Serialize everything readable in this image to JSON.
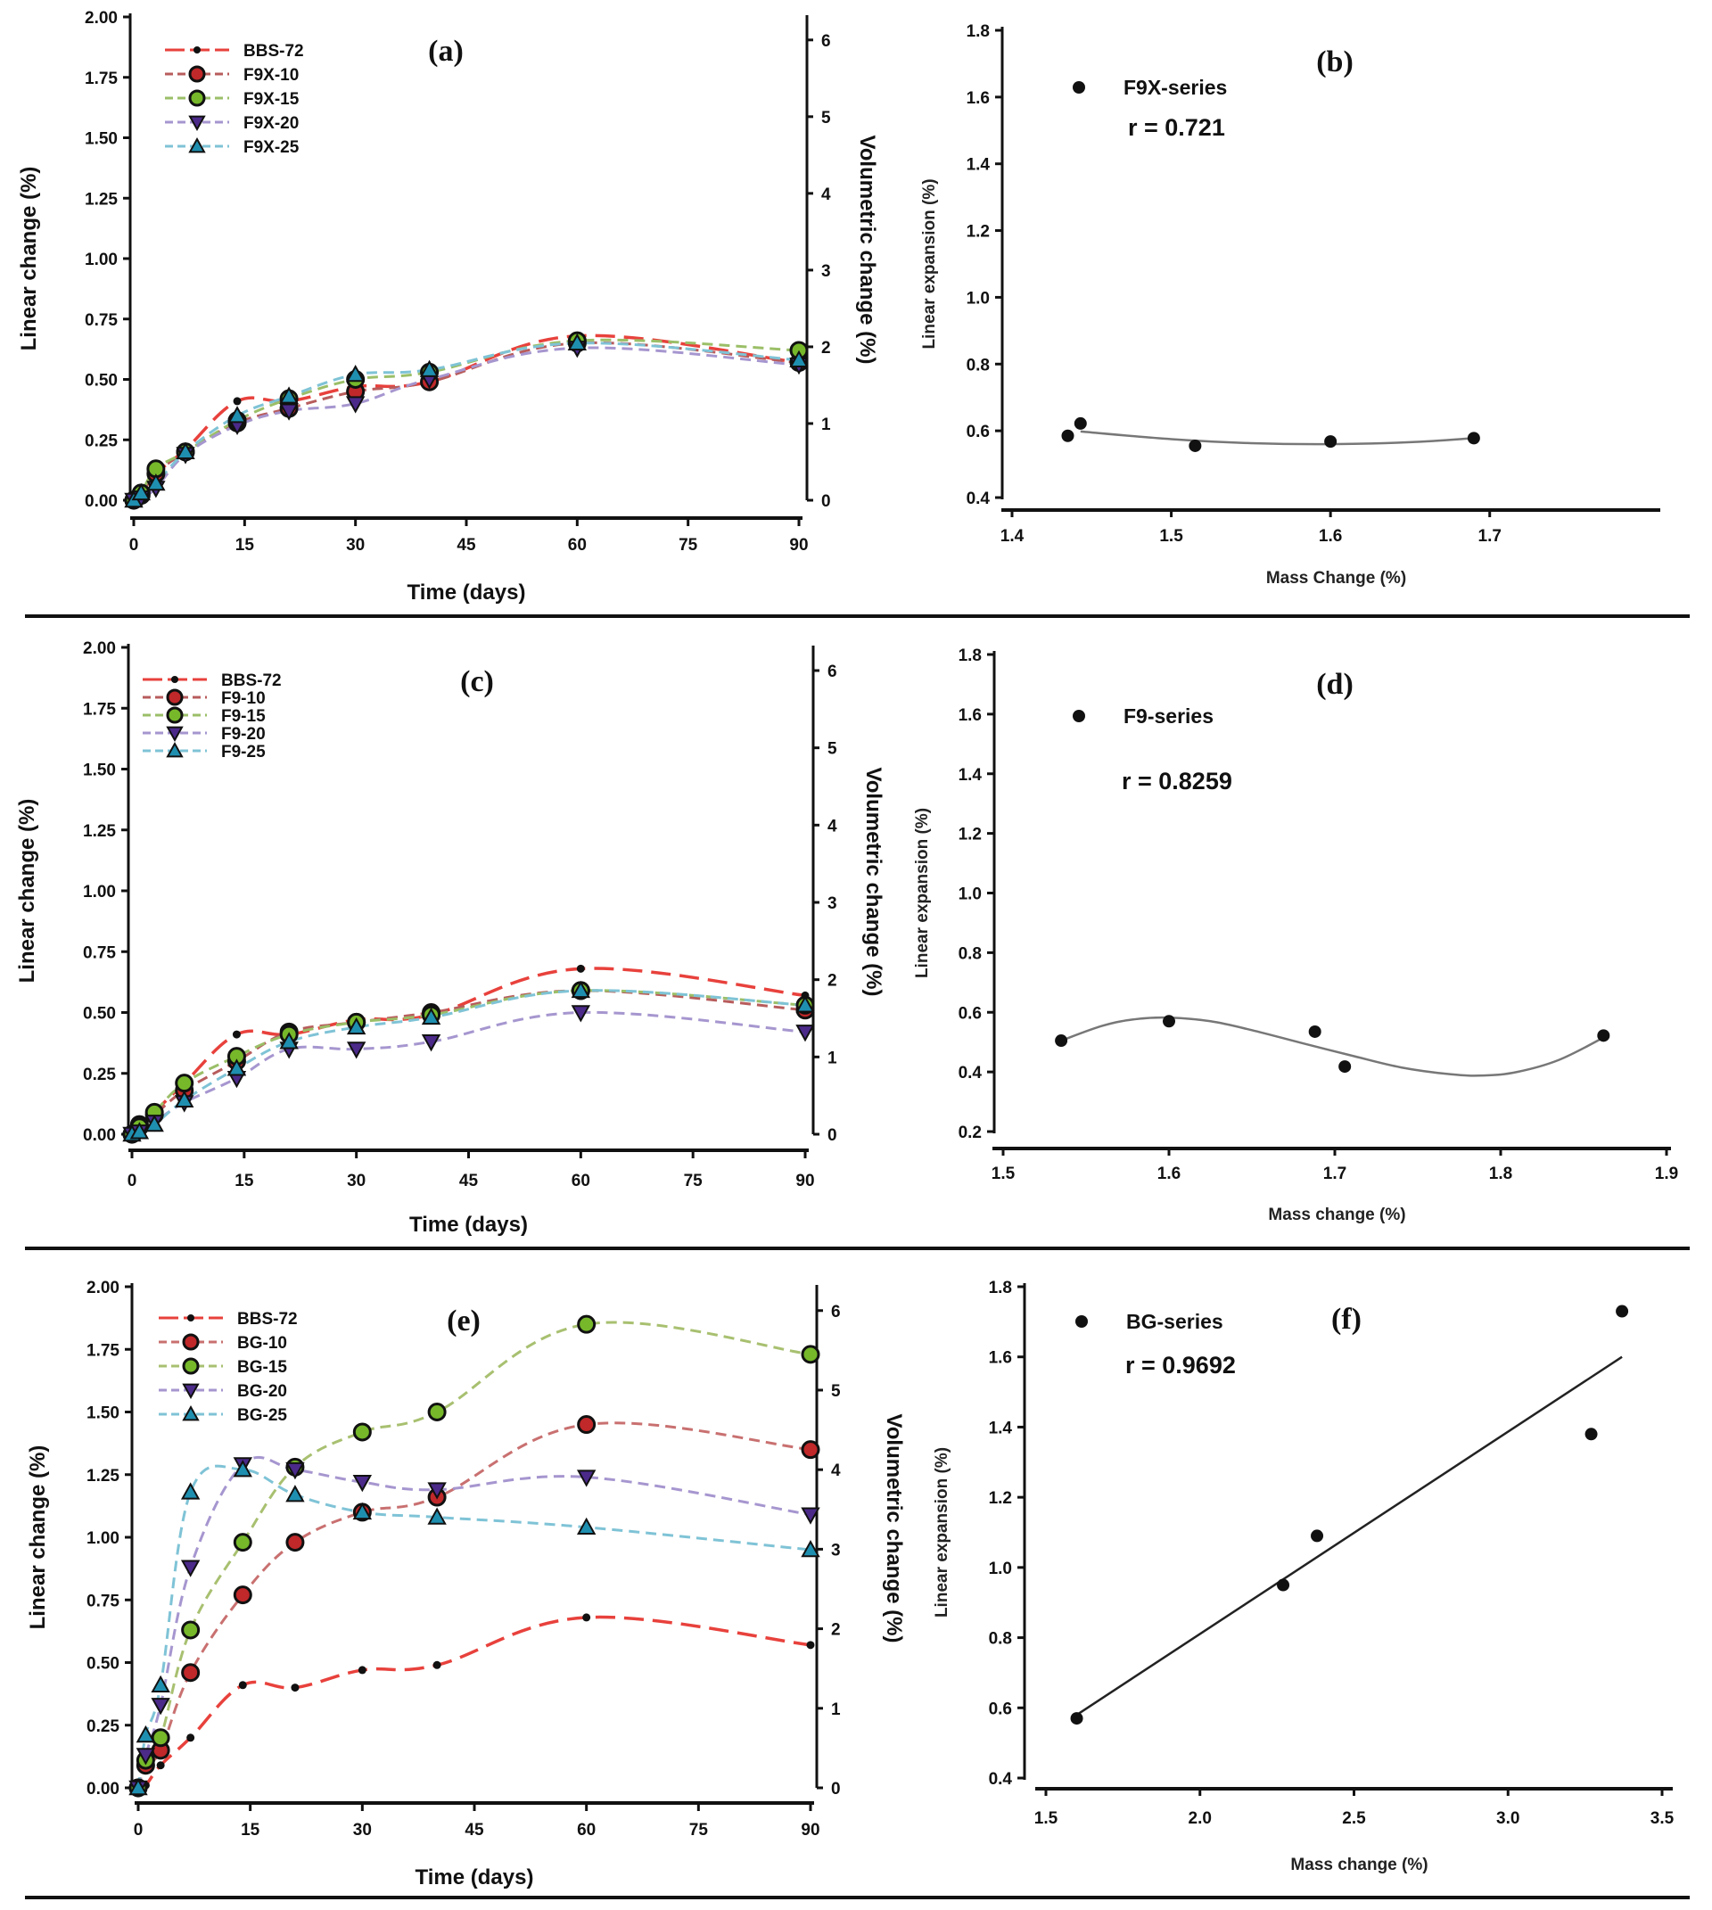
{
  "chart_data": [
    {
      "id": "a",
      "type": "line",
      "panel_label": "(a)",
      "xlabel": "Time (days)",
      "ylabel": "Linear change (%)",
      "y2label": "Volumetric change (%)",
      "xlim": [
        0,
        90
      ],
      "ylim": [
        0,
        2.0
      ],
      "y2lim": [
        0,
        6.3
      ],
      "xticks": [
        "0",
        "15",
        "30",
        "45",
        "60",
        "75",
        "90"
      ],
      "yticks": [
        "0.00",
        "0.25",
        "0.50",
        "0.75",
        "1.00",
        "1.25",
        "1.50",
        "1.75",
        "2.00"
      ],
      "y2ticks": [
        "0",
        "1",
        "2",
        "3",
        "4",
        "5",
        "6"
      ],
      "legend_position": "top-left",
      "x": [
        0,
        1,
        3,
        7,
        14,
        21,
        30,
        40,
        60,
        90
      ],
      "series": [
        {
          "name": "BBS-72",
          "color": "#e8413c",
          "marker": "dot",
          "values": [
            0,
            0.02,
            0.11,
            0.21,
            0.41,
            0.41,
            0.47,
            0.49,
            0.68,
            0.57
          ]
        },
        {
          "name": "F9X-10",
          "color": "#b85c5c",
          "marker": "circle",
          "markerFill": "#c0282a",
          "values": [
            0,
            0.02,
            0.11,
            0.2,
            0.32,
            0.38,
            0.45,
            0.49,
            0.65,
            0.57
          ]
        },
        {
          "name": "F9X-15",
          "color": "#9bbf68",
          "marker": "circle",
          "markerFill": "#76b82a",
          "values": [
            0,
            0.03,
            0.13,
            0.2,
            0.33,
            0.42,
            0.5,
            0.53,
            0.66,
            0.62
          ]
        },
        {
          "name": "F9X-20",
          "color": "#a696cf",
          "marker": "triangle-down",
          "markerFill": "#4b2a8a",
          "values": [
            0,
            0.01,
            0.05,
            0.19,
            0.31,
            0.37,
            0.4,
            0.5,
            0.63,
            0.56
          ]
        },
        {
          "name": "F9X-25",
          "color": "#7fc3d6",
          "marker": "triangle-up",
          "markerFill": "#1f8fb0",
          "values": [
            0,
            0.03,
            0.07,
            0.2,
            0.35,
            0.43,
            0.52,
            0.54,
            0.65,
            0.58
          ]
        }
      ]
    },
    {
      "id": "b",
      "type": "scatter",
      "panel_label": "(b)",
      "xlabel": "Mass Change (%)",
      "ylabel": "Linear expansion (%)",
      "xlim": [
        1.4,
        1.75
      ],
      "ylim": [
        0.4,
        1.8
      ],
      "xticks": [
        "1.4",
        "1.5",
        "1.6",
        "1.7"
      ],
      "xtick_values": [
        1.4,
        1.5,
        1.6,
        1.7
      ],
      "yticks": [
        "0.4",
        "0.6",
        "0.8",
        "1.0",
        "1.2",
        "1.4",
        "1.6",
        "1.8"
      ],
      "legend": "F9X-series",
      "annotation": "r = 0.721",
      "fit": "quadratic",
      "points": [
        [
          1.435,
          0.585
        ],
        [
          1.443,
          0.622
        ],
        [
          1.515,
          0.555
        ],
        [
          1.6,
          0.568
        ],
        [
          1.69,
          0.578
        ]
      ],
      "fit_curve": [
        [
          1.443,
          0.598
        ],
        [
          1.5,
          0.575
        ],
        [
          1.55,
          0.563
        ],
        [
          1.6,
          0.56
        ],
        [
          1.65,
          0.566
        ],
        [
          1.69,
          0.578
        ]
      ]
    },
    {
      "id": "c",
      "type": "line",
      "panel_label": "(c)",
      "xlabel": "Time (days)",
      "ylabel": "Linear change (%)",
      "y2label": "Volumetric change (%)",
      "xlim": [
        0,
        90
      ],
      "ylim": [
        0,
        2.0
      ],
      "y2lim": [
        0,
        6.3
      ],
      "xticks": [
        "0",
        "15",
        "30",
        "45",
        "60",
        "75",
        "90"
      ],
      "yticks": [
        "0.00",
        "0.25",
        "0.50",
        "0.75",
        "1.00",
        "1.25",
        "1.50",
        "1.75",
        "2.00"
      ],
      "y2ticks": [
        "0",
        "1",
        "2",
        "3",
        "4",
        "5",
        "6"
      ],
      "legend_position": "top-left",
      "x": [
        0,
        1,
        3,
        7,
        14,
        21,
        30,
        40,
        60,
        90
      ],
      "series": [
        {
          "name": "BBS-72",
          "color": "#e8413c",
          "marker": "dot",
          "values": [
            0,
            0.02,
            0.09,
            0.21,
            0.41,
            0.41,
            0.47,
            0.49,
            0.68,
            0.57
          ]
        },
        {
          "name": "F9-10",
          "color": "#b85c5c",
          "marker": "circle",
          "markerFill": "#c0282a",
          "values": [
            0,
            0.04,
            0.08,
            0.18,
            0.3,
            0.42,
            0.46,
            0.5,
            0.59,
            0.51
          ]
        },
        {
          "name": "F9-15",
          "color": "#9bbf68",
          "marker": "circle",
          "markerFill": "#76b82a",
          "values": [
            0,
            0.03,
            0.09,
            0.21,
            0.32,
            0.41,
            0.46,
            0.49,
            0.59,
            0.53
          ]
        },
        {
          "name": "F9-20",
          "color": "#a696cf",
          "marker": "triangle-down",
          "markerFill": "#4b2a8a",
          "values": [
            0,
            0.01,
            0.05,
            0.13,
            0.23,
            0.35,
            0.35,
            0.38,
            0.5,
            0.42
          ]
        },
        {
          "name": "F9-25",
          "color": "#7fc3d6",
          "marker": "triangle-up",
          "markerFill": "#1f8fb0",
          "values": [
            0,
            0.01,
            0.04,
            0.14,
            0.27,
            0.38,
            0.44,
            0.48,
            0.59,
            0.53
          ]
        }
      ]
    },
    {
      "id": "d",
      "type": "scatter",
      "panel_label": "(d)",
      "xlabel": "Mass change (%)",
      "ylabel": "Linear expansion (%)",
      "xlim": [
        1.5,
        1.9
      ],
      "ylim": [
        0.2,
        1.8
      ],
      "xticks": [
        "1.5",
        "1.6",
        "1.7",
        "1.8",
        "1.9"
      ],
      "xtick_values": [
        1.5,
        1.6,
        1.7,
        1.8,
        1.9
      ],
      "yticks": [
        "0.2",
        "0.4",
        "0.6",
        "0.8",
        "1.0",
        "1.2",
        "1.4",
        "1.6",
        "1.8"
      ],
      "legend": "F9-series",
      "annotation": "r = 0.8259",
      "fit": "cubic",
      "points": [
        [
          1.535,
          0.505
        ],
        [
          1.6,
          0.57
        ],
        [
          1.688,
          0.535
        ],
        [
          1.706,
          0.418
        ],
        [
          1.862,
          0.522
        ]
      ],
      "fit_curve": [
        [
          1.535,
          0.505
        ],
        [
          1.56,
          0.555
        ],
        [
          1.58,
          0.577
        ],
        [
          1.6,
          0.582
        ],
        [
          1.625,
          0.57
        ],
        [
          1.65,
          0.54
        ],
        [
          1.68,
          0.497
        ],
        [
          1.71,
          0.455
        ],
        [
          1.74,
          0.415
        ],
        [
          1.77,
          0.392
        ],
        [
          1.79,
          0.388
        ],
        [
          1.81,
          0.4
        ],
        [
          1.835,
          0.44
        ],
        [
          1.862,
          0.515
        ]
      ]
    },
    {
      "id": "e",
      "type": "line",
      "panel_label": "(e)",
      "xlabel": "Time (days)",
      "ylabel": "Linear change (%)",
      "y2label": "Volumetric change (%)",
      "xlim": [
        0,
        90
      ],
      "ylim": [
        0,
        2.0
      ],
      "y2lim": [
        0,
        6.3
      ],
      "xticks": [
        "0",
        "15",
        "30",
        "45",
        "60",
        "75",
        "90"
      ],
      "yticks": [
        "0.00",
        "0.25",
        "0.50",
        "0.75",
        "1.00",
        "1.25",
        "1.50",
        "1.75",
        "2.00"
      ],
      "y2ticks": [
        "0",
        "1",
        "2",
        "3",
        "4",
        "5",
        "6"
      ],
      "legend_position": "top-left",
      "x": [
        0,
        1,
        3,
        7,
        14,
        21,
        30,
        40,
        60,
        90
      ],
      "series": [
        {
          "name": "BBS-72",
          "color": "#e8413c",
          "marker": "dot",
          "values": [
            0,
            0.01,
            0.09,
            0.2,
            0.41,
            0.4,
            0.47,
            0.49,
            0.68,
            0.57
          ]
        },
        {
          "name": "BG-10",
          "color": "#c97070",
          "marker": "circle",
          "markerFill": "#c0282a",
          "values": [
            0,
            0.09,
            0.15,
            0.46,
            0.77,
            0.98,
            1.1,
            1.16,
            1.45,
            1.35
          ]
        },
        {
          "name": "BG-15",
          "color": "#a8c070",
          "marker": "circle",
          "markerFill": "#76b82a",
          "values": [
            0,
            0.11,
            0.2,
            0.63,
            0.98,
            1.28,
            1.42,
            1.5,
            1.85,
            1.73
          ]
        },
        {
          "name": "BG-20",
          "color": "#a696cf",
          "marker": "triangle-down",
          "markerFill": "#4b2a8a",
          "values": [
            0,
            0.13,
            0.33,
            0.88,
            1.29,
            1.27,
            1.22,
            1.19,
            1.24,
            1.09
          ]
        },
        {
          "name": "BG-25",
          "color": "#7fc3d6",
          "marker": "triangle-up",
          "markerFill": "#1f8fb0",
          "values": [
            0,
            0.21,
            0.41,
            1.18,
            1.27,
            1.17,
            1.1,
            1.08,
            1.04,
            0.95
          ]
        }
      ]
    },
    {
      "id": "f",
      "type": "scatter",
      "panel_label": "(f)",
      "xlabel": "Mass change (%)",
      "ylabel": "Linear expansion (%)",
      "xlim": [
        1.5,
        3.5
      ],
      "ylim": [
        0.4,
        1.8
      ],
      "xticks": [
        "1.5",
        "2.0",
        "2.5",
        "3.0",
        "3.5"
      ],
      "xtick_values": [
        1.5,
        2.0,
        2.5,
        3.0,
        3.5
      ],
      "yticks": [
        "0.4",
        "0.6",
        "0.8",
        "1.0",
        "1.2",
        "1.4",
        "1.6",
        "1.8"
      ],
      "legend": "BG-series",
      "annotation": "r = 0.9692",
      "fit": "linear",
      "points": [
        [
          1.6,
          0.57
        ],
        [
          2.27,
          0.95
        ],
        [
          2.38,
          1.09
        ],
        [
          3.27,
          1.38
        ],
        [
          3.37,
          1.73
        ]
      ],
      "fit_curve": [
        [
          1.6,
          0.58
        ],
        [
          3.37,
          1.6
        ]
      ]
    }
  ]
}
